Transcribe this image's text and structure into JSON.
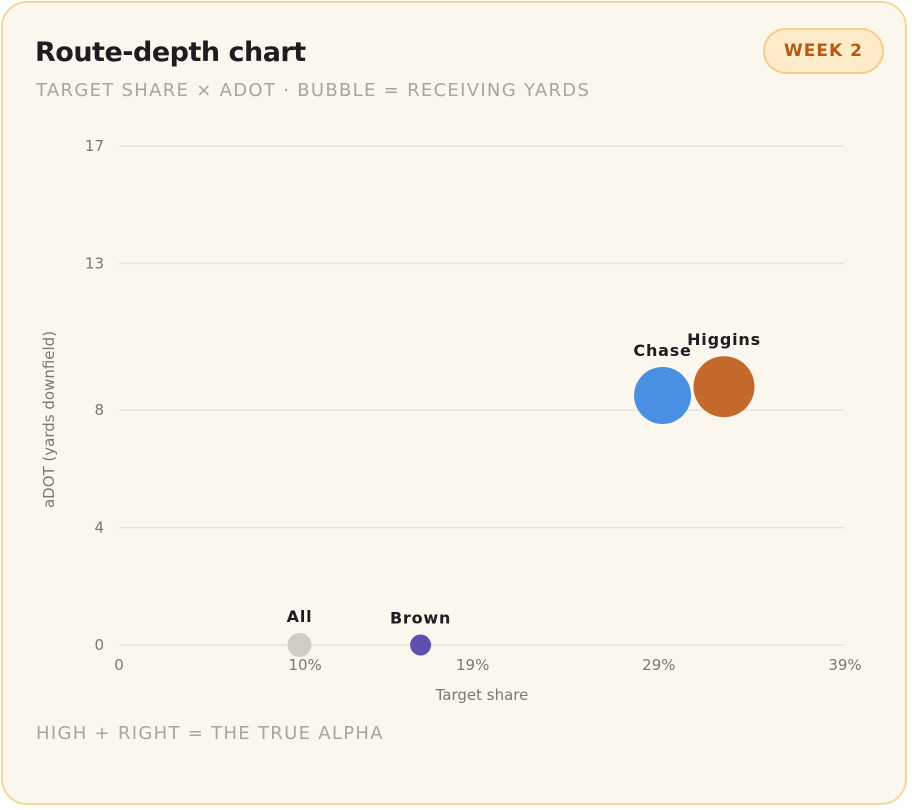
{
  "header": {
    "title": "Route-depth chart",
    "subtitle": "TARGET SHARE × ADOT · BUBBLE = RECEIVING YARDS",
    "badge": "WEEK 2"
  },
  "footer": {
    "note": "HIGH + RIGHT = THE TRUE ALPHA"
  },
  "chart_data": {
    "type": "scatter",
    "xlabel": "Target share",
    "ylabel": "aDOT (yards downfield)",
    "xlim": [
      0,
      39
    ],
    "ylim": [
      0,
      17
    ],
    "x_ticks": [
      {
        "value": 0,
        "label": "0"
      },
      {
        "value": 10,
        "label": "10%"
      },
      {
        "value": 19,
        "label": "19%"
      },
      {
        "value": 29,
        "label": "29%"
      },
      {
        "value": 39,
        "label": "39%"
      }
    ],
    "y_ticks": [
      {
        "value": 0,
        "label": "0"
      },
      {
        "value": 4,
        "label": "4"
      },
      {
        "value": 8,
        "label": "8"
      },
      {
        "value": 13,
        "label": "13"
      },
      {
        "value": 17,
        "label": "17"
      }
    ],
    "grid": true,
    "points": [
      {
        "label": "All",
        "x": 9.7,
        "y": 0,
        "size": 12,
        "color": "#d0cdc8"
      },
      {
        "label": "Brown",
        "x": 16.2,
        "y": 0,
        "size": 10.5,
        "color": "#5e4fb0"
      },
      {
        "label": "Chase",
        "x": 29.2,
        "y": 8.5,
        "size": 28.5,
        "color": "#4a90e2"
      },
      {
        "label": "Higgins",
        "x": 32.5,
        "y": 8.8,
        "size": 30.5,
        "color": "#c2692b"
      }
    ]
  }
}
